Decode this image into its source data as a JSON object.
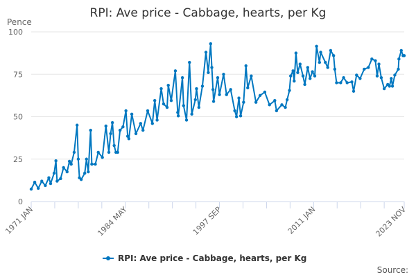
{
  "chart_data": {
    "type": "line",
    "title": "RPI: Ave price - Cabbage, hearts, per Kg",
    "ylabel": "Pence",
    "xlabel": "",
    "ylim": [
      0,
      100
    ],
    "yticks": [
      0,
      25,
      50,
      75,
      100
    ],
    "xlim": [
      "1971-01",
      "2023-11"
    ],
    "xtick_labels": [
      "1971 JAN",
      "1984 MAY",
      "1997 SEP",
      "2011 JAN",
      "2023 NOV"
    ],
    "xtick_label_dates": [
      "1971-01",
      "1984-05",
      "1997-09",
      "2011-01",
      "2023-11"
    ],
    "grid": true,
    "legend_position": "bottom",
    "source_label": "Source:",
    "color": "#0077c0",
    "series": [
      {
        "name": "RPI: Ave price - Cabbage, hearts, per Kg",
        "x": [
          "1971-01",
          "1971-07",
          "1972-01",
          "1972-07",
          "1973-01",
          "1973-07",
          "1973-10",
          "1974-04",
          "1974-07",
          "1974-09",
          "1975-03",
          "1975-08",
          "1976-02",
          "1976-06",
          "1976-09",
          "1977-02",
          "1977-07",
          "1977-09",
          "1977-11",
          "1978-02",
          "1978-08",
          "1978-11",
          "1979-02",
          "1979-06",
          "1979-08",
          "1980-02",
          "1980-07",
          "1981-02",
          "1981-08",
          "1982-01",
          "1982-04",
          "1982-07",
          "1982-10",
          "1983-01",
          "1983-04",
          "1983-08",
          "1984-01",
          "1984-06",
          "1984-09",
          "1984-11",
          "1985-04",
          "1985-11",
          "1986-07",
          "1986-11",
          "1987-07",
          "1988-03",
          "1988-07",
          "1988-11",
          "1989-06",
          "1989-10",
          "1990-04",
          "1990-06",
          "1990-11",
          "1991-06",
          "1991-10",
          "1991-11",
          "1992-06",
          "1992-08",
          "1993-01",
          "1993-06",
          "1993-10",
          "1994-04",
          "1994-06",
          "1994-10",
          "1995-04",
          "1995-10",
          "1996-02",
          "1996-06",
          "1996-08",
          "1996-10",
          "1996-11",
          "1997-06",
          "1997-09",
          "1998-04",
          "1998-09",
          "1999-04",
          "1999-11",
          "2000-02",
          "2000-06",
          "2000-09",
          "2001-02",
          "2001-06",
          "2001-09",
          "2002-03",
          "2002-11",
          "2003-06",
          "2004-02",
          "2004-10",
          "2005-07",
          "2005-10",
          "2006-07",
          "2007-01",
          "2007-04",
          "2007-08",
          "2007-10",
          "2008-02",
          "2008-04",
          "2008-07",
          "2008-10",
          "2009-02",
          "2009-07",
          "2009-10",
          "2010-03",
          "2010-07",
          "2010-11",
          "2011-03",
          "2011-06",
          "2011-11",
          "2012-01",
          "2012-09",
          "2013-01",
          "2013-06",
          "2013-11",
          "2014-01",
          "2014-04",
          "2014-11",
          "2015-04",
          "2015-10",
          "2016-06",
          "2016-09",
          "2017-02",
          "2017-08",
          "2018-03",
          "2018-10",
          "2019-04",
          "2019-10",
          "2020-01",
          "2020-04",
          "2020-08",
          "2021-01",
          "2021-07",
          "2021-10",
          "2022-01",
          "2022-03",
          "2022-07",
          "2023-01",
          "2023-02",
          "2023-06",
          "2023-09",
          "2023-11"
        ],
        "values": [
          7.3,
          11.4,
          7.8,
          12,
          9.4,
          14,
          10.6,
          16.7,
          24,
          12,
          13.5,
          20,
          17.5,
          23.7,
          22,
          29,
          45,
          25,
          14,
          13,
          16.7,
          25,
          17.5,
          42,
          22,
          22,
          29,
          26,
          44.5,
          29,
          40,
          46.5,
          33,
          29,
          29,
          42,
          44,
          53.5,
          38.5,
          37,
          51.5,
          40,
          46,
          42,
          53.5,
          46,
          59.5,
          48,
          66.5,
          57.5,
          55.5,
          68.5,
          59.5,
          77,
          52.5,
          50.5,
          73,
          56.5,
          48,
          82,
          51.5,
          60,
          66.5,
          55.5,
          68,
          88,
          76,
          93,
          79,
          66,
          59,
          73,
          63,
          75,
          63,
          66,
          53.5,
          50,
          61,
          50.5,
          58.5,
          80,
          67,
          74,
          58.5,
          62.5,
          64.5,
          57,
          59.5,
          53.5,
          57,
          55.5,
          60,
          65.5,
          74,
          77,
          71,
          87.5,
          76,
          81,
          74,
          69,
          79,
          72.5,
          76.5,
          74,
          91.5,
          82,
          88,
          82,
          79,
          89,
          86,
          78,
          70,
          70,
          73,
          70,
          70.5,
          65,
          74.5,
          72.5,
          78,
          79,
          84,
          83,
          74,
          81,
          73,
          66.5,
          69,
          68,
          72.5,
          68,
          74.5,
          78,
          84,
          89,
          86,
          86
        ]
      }
    ]
  }
}
